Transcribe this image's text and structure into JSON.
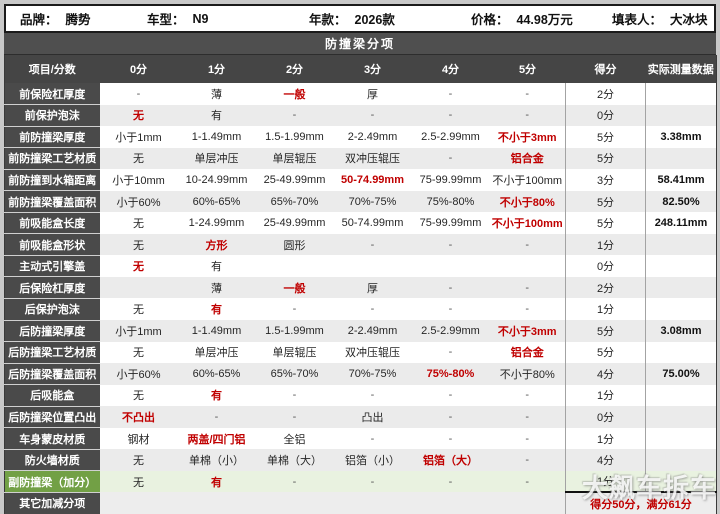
{
  "info_bar": {
    "fields": [
      {
        "label": "品牌：",
        "value": "腾势"
      },
      {
        "label": "车型：",
        "value": "N9"
      },
      {
        "label": "年款：",
        "value": "2026款"
      },
      {
        "label": "价格：",
        "value": "44.98万元"
      },
      {
        "label": "填表人：",
        "value": "大冰块"
      }
    ]
  },
  "section_title": "防撞梁分项",
  "table": {
    "headers": [
      "项目/分数",
      "0分",
      "1分",
      "2分",
      "3分",
      "4分",
      "5分",
      "得分",
      "实际测量数据"
    ],
    "rows": [
      {
        "label": "前保险杠厚度",
        "green": false,
        "cells": [
          [
            "-",
            0
          ],
          [
            "薄",
            0
          ],
          [
            "一般",
            1
          ],
          [
            "厚",
            0
          ],
          [
            "-",
            0
          ],
          [
            "-",
            0
          ]
        ],
        "score": "2分",
        "measured": ""
      },
      {
        "label": "前保护泡沫",
        "green": false,
        "cells": [
          [
            "无",
            1
          ],
          [
            "有",
            0
          ],
          [
            "-",
            0
          ],
          [
            "-",
            0
          ],
          [
            "-",
            0
          ],
          [
            "-",
            0
          ]
        ],
        "score": "0分",
        "measured": ""
      },
      {
        "label": "前防撞梁厚度",
        "green": false,
        "cells": [
          [
            "小于1mm",
            0
          ],
          [
            "1-1.49mm",
            0
          ],
          [
            "1.5-1.99mm",
            0
          ],
          [
            "2-2.49mm",
            0
          ],
          [
            "2.5-2.99mm",
            0
          ],
          [
            "不小于3mm",
            1
          ]
        ],
        "score": "5分",
        "measured": "3.38mm"
      },
      {
        "label": "前防撞梁工艺材质",
        "green": false,
        "cells": [
          [
            "无",
            0
          ],
          [
            "单层冲压",
            0
          ],
          [
            "单层辊压",
            0
          ],
          [
            "双冲压辊压",
            0
          ],
          [
            "-",
            0
          ],
          [
            "铝合金",
            1
          ]
        ],
        "score": "5分",
        "measured": ""
      },
      {
        "label": "前防撞到水箱距离",
        "green": false,
        "cells": [
          [
            "小于10mm",
            0
          ],
          [
            "10-24.99mm",
            0
          ],
          [
            "25-49.99mm",
            0
          ],
          [
            "50-74.99mm",
            1
          ],
          [
            "75-99.99mm",
            0
          ],
          [
            "不小于100mm",
            0
          ]
        ],
        "score": "3分",
        "measured": "58.41mm"
      },
      {
        "label": "前防撞梁覆盖面积",
        "green": false,
        "cells": [
          [
            "小于60%",
            0
          ],
          [
            "60%-65%",
            0
          ],
          [
            "65%-70%",
            0
          ],
          [
            "70%-75%",
            0
          ],
          [
            "75%-80%",
            0
          ],
          [
            "不小于80%",
            1
          ]
        ],
        "score": "5分",
        "measured": "82.50%"
      },
      {
        "label": "前吸能盒长度",
        "green": false,
        "cells": [
          [
            "无",
            0
          ],
          [
            "1-24.99mm",
            0
          ],
          [
            "25-49.99mm",
            0
          ],
          [
            "50-74.99mm",
            0
          ],
          [
            "75-99.99mm",
            0
          ],
          [
            "不小于100mm",
            1
          ]
        ],
        "score": "5分",
        "measured": "248.11mm"
      },
      {
        "label": "前吸能盒形状",
        "green": false,
        "cells": [
          [
            "无",
            0
          ],
          [
            "方形",
            1
          ],
          [
            "圆形",
            0
          ],
          [
            "-",
            0
          ],
          [
            "-",
            0
          ],
          [
            "-",
            0
          ]
        ],
        "score": "1分",
        "measured": ""
      },
      {
        "label": "主动式引擎盖",
        "green": false,
        "cells": [
          [
            "无",
            1
          ],
          [
            "有",
            0
          ],
          [
            "",
            0
          ],
          [
            "",
            0
          ],
          [
            "",
            0
          ],
          [
            "",
            0
          ]
        ],
        "score": "0分",
        "measured": ""
      },
      {
        "label": "后保险杠厚度",
        "green": false,
        "cells": [
          [
            "",
            0
          ],
          [
            "薄",
            0
          ],
          [
            "一般",
            1
          ],
          [
            "厚",
            0
          ],
          [
            "-",
            0
          ],
          [
            "-",
            0
          ]
        ],
        "score": "2分",
        "measured": ""
      },
      {
        "label": "后保护泡沫",
        "green": false,
        "cells": [
          [
            "无",
            0
          ],
          [
            "有",
            1
          ],
          [
            "-",
            0
          ],
          [
            "-",
            0
          ],
          [
            "-",
            0
          ],
          [
            "-",
            0
          ]
        ],
        "score": "1分",
        "measured": ""
      },
      {
        "label": "后防撞梁厚度",
        "green": false,
        "cells": [
          [
            "小于1mm",
            0
          ],
          [
            "1-1.49mm",
            0
          ],
          [
            "1.5-1.99mm",
            0
          ],
          [
            "2-2.49mm",
            0
          ],
          [
            "2.5-2.99mm",
            0
          ],
          [
            "不小于3mm",
            1
          ]
        ],
        "score": "5分",
        "measured": "3.08mm"
      },
      {
        "label": "后防撞梁工艺材质",
        "green": false,
        "cells": [
          [
            "无",
            0
          ],
          [
            "单层冲压",
            0
          ],
          [
            "单层辊压",
            0
          ],
          [
            "双冲压辊压",
            0
          ],
          [
            "-",
            0
          ],
          [
            "铝合金",
            1
          ]
        ],
        "score": "5分",
        "measured": ""
      },
      {
        "label": "后防撞梁覆盖面积",
        "green": false,
        "cells": [
          [
            "小于60%",
            0
          ],
          [
            "60%-65%",
            0
          ],
          [
            "65%-70%",
            0
          ],
          [
            "70%-75%",
            0
          ],
          [
            "75%-80%",
            1
          ],
          [
            "不小于80%",
            0
          ]
        ],
        "score": "4分",
        "measured": "75.00%"
      },
      {
        "label": "后吸能盒",
        "green": false,
        "cells": [
          [
            "无",
            0
          ],
          [
            "有",
            1
          ],
          [
            "-",
            0
          ],
          [
            "-",
            0
          ],
          [
            "-",
            0
          ],
          [
            "-",
            0
          ]
        ],
        "score": "1分",
        "measured": ""
      },
      {
        "label": "后防撞梁位置凸出",
        "green": false,
        "cells": [
          [
            "不凸出",
            1
          ],
          [
            "-",
            0
          ],
          [
            "-",
            0
          ],
          [
            "凸出",
            0
          ],
          [
            "-",
            0
          ],
          [
            "-",
            0
          ]
        ],
        "score": "0分",
        "measured": ""
      },
      {
        "label": "车身蒙皮材质",
        "green": false,
        "cells": [
          [
            "钢材",
            0
          ],
          [
            "两盖/四门铝",
            1
          ],
          [
            "全铝",
            0
          ],
          [
            "-",
            0
          ],
          [
            "-",
            0
          ],
          [
            "-",
            0
          ]
        ],
        "score": "1分",
        "measured": ""
      },
      {
        "label": "防火墙材质",
        "green": false,
        "cells": [
          [
            "无",
            0
          ],
          [
            "单棉（小）",
            0
          ],
          [
            "单棉（大）",
            0
          ],
          [
            "铝箔（小）",
            0
          ],
          [
            "铝箔（大）",
            1
          ],
          [
            "-",
            0
          ]
        ],
        "score": "4分",
        "measured": ""
      },
      {
        "label": "副防撞梁（加分）",
        "green": true,
        "cells": [
          [
            "无",
            0
          ],
          [
            "有",
            1
          ],
          [
            "-",
            0
          ],
          [
            "-",
            0
          ],
          [
            "-",
            0
          ],
          [
            "-",
            0
          ]
        ],
        "score": "1分",
        "measured": ""
      }
    ],
    "summary_row": {
      "label": "其它加减分项",
      "total": "得分50分，满分61分"
    }
  },
  "watermark": "大飙车拆车",
  "colors": {
    "accent_red": "#C00000",
    "label_dark": "#4A4A4A",
    "bonus_green": "#72A045",
    "bonus_green_light": "#E9F2E0",
    "stripe_gray": "#EBEBEB"
  }
}
